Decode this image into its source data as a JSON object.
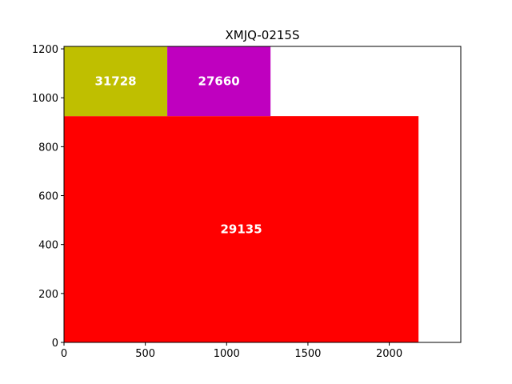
{
  "chart_data": {
    "type": "treemap",
    "title": "XMJQ-0215S",
    "xlabel": "",
    "ylabel": "",
    "xlim": [
      0,
      2440
    ],
    "ylim": [
      0,
      1210
    ],
    "xticks": [
      0,
      500,
      1000,
      1500,
      2000
    ],
    "yticks": [
      0,
      200,
      400,
      600,
      800,
      1000,
      1200
    ],
    "grid": false,
    "rectangles": [
      {
        "label": "29135",
        "x0": 0,
        "x1": 2180,
        "y0": 0,
        "y1": 925,
        "color": "#ff0000"
      },
      {
        "label": "31728",
        "x0": 0,
        "x1": 635,
        "y0": 925,
        "y1": 1210,
        "color": "#bfbf00"
      },
      {
        "label": "27660",
        "x0": 635,
        "x1": 1270,
        "y0": 925,
        "y1": 1210,
        "color": "#bf00bf"
      }
    ]
  }
}
